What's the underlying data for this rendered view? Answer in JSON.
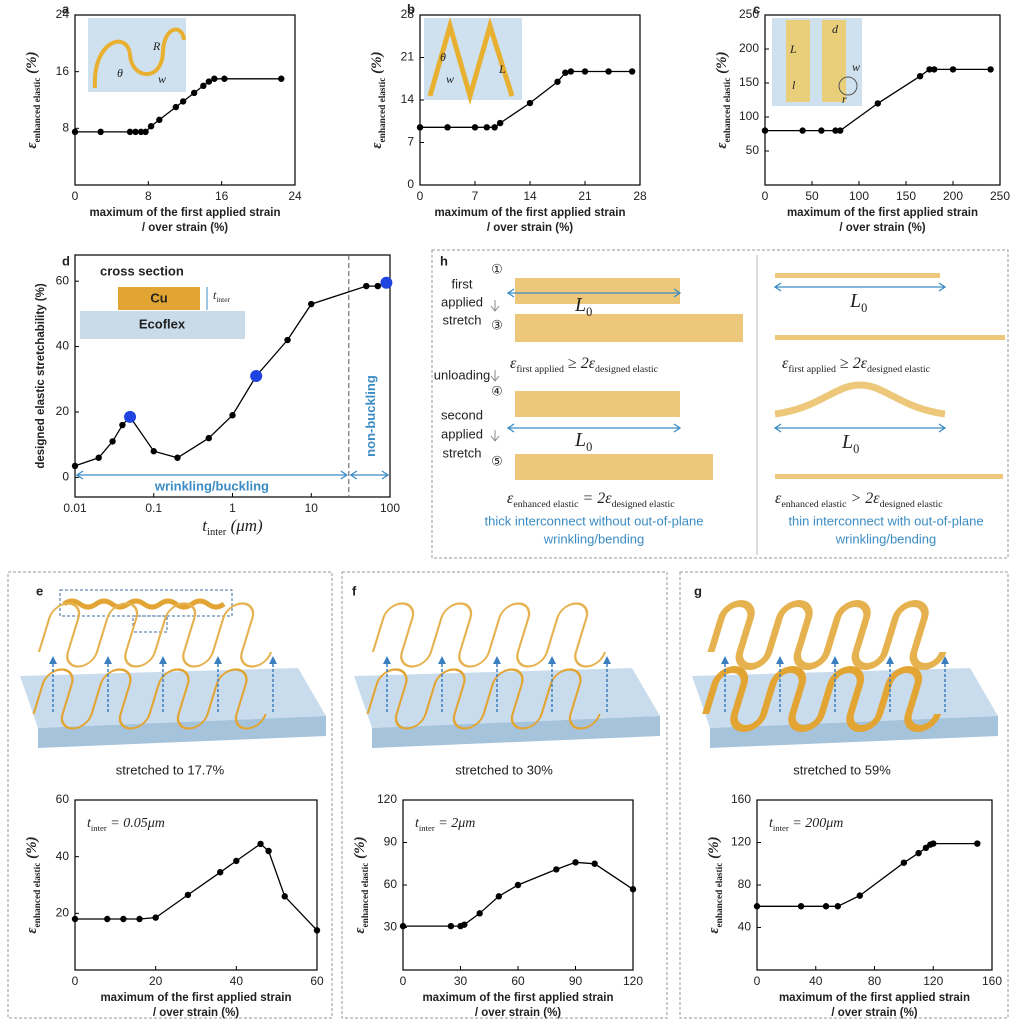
{
  "chart_data": [
    {
      "type": "line",
      "panel": "a",
      "x": [
        0,
        2.8,
        6,
        6.6,
        7.2,
        7.7,
        8.3,
        9.2,
        11,
        11.8,
        13,
        14,
        14.6,
        15.2,
        16.3,
        22.5
      ],
      "values": [
        7.5,
        7.5,
        7.5,
        7.5,
        7.5,
        7.5,
        8.3,
        9.2,
        11,
        11.8,
        13,
        14,
        14.6,
        15,
        15,
        15
      ],
      "color": "#000000",
      "xlim": [
        0,
        24
      ],
      "xticks": [
        0,
        8,
        16,
        24
      ],
      "ylim": [
        0,
        24
      ],
      "yticks": [
        8,
        16,
        24
      ],
      "xlabel": [
        "maximum of the first applied strain",
        "/ over strain (%)"
      ],
      "ylabel": [
        {
          "text": "ε"
        },
        {
          "sub": "enhanced elastic"
        },
        {
          "text": " (%)"
        }
      ],
      "inset_labels": [
        "R",
        "θ",
        "w"
      ]
    },
    {
      "type": "line",
      "panel": "b",
      "x": [
        0,
        3.5,
        7,
        8.5,
        9.5,
        10.2,
        14,
        17.5,
        18.5,
        19.2,
        21,
        24,
        27
      ],
      "values": [
        9.5,
        9.5,
        9.5,
        9.5,
        9.5,
        10.2,
        13.5,
        17,
        18.5,
        18.7,
        18.7,
        18.7,
        18.7
      ],
      "color": "#000000",
      "xlim": [
        0,
        28
      ],
      "xticks": [
        0,
        7,
        14,
        21,
        28
      ],
      "ylim": [
        0,
        28
      ],
      "yticks": [
        0,
        7,
        14,
        21,
        28
      ],
      "xlabel": [
        "maximum of the first applied strain",
        "/ over strain (%)"
      ],
      "ylabel": [
        {
          "text": "ε"
        },
        {
          "sub": "enhanced elastic"
        },
        {
          "text": " (%)"
        }
      ],
      "inset_labels": [
        "θ",
        "w",
        "L"
      ]
    },
    {
      "type": "line",
      "panel": "c",
      "x": [
        0,
        40,
        60,
        75,
        80,
        120,
        165,
        175,
        180,
        200,
        240
      ],
      "values": [
        80,
        80,
        80,
        80,
        80,
        120,
        160,
        170,
        170,
        170,
        170
      ],
      "color": "#000000",
      "xlim": [
        0,
        250
      ],
      "xticks": [
        0,
        50,
        100,
        150,
        200,
        250
      ],
      "ylim": [
        0,
        250
      ],
      "yticks": [
        50,
        100,
        150,
        200,
        250
      ],
      "xlabel": [
        "maximum of the first applied strain",
        "/ over strain (%)"
      ],
      "ylabel": [
        {
          "text": "ε"
        },
        {
          "sub": "enhanced elastic"
        },
        {
          "text": " (%)"
        }
      ],
      "inset_labels": [
        "L",
        "d",
        "l",
        "w",
        "r"
      ]
    },
    {
      "type": "line",
      "panel": "d",
      "xscale": "log",
      "x": [
        0.01,
        0.02,
        0.03,
        0.04,
        0.05,
        0.1,
        0.2,
        0.5,
        1,
        2,
        5,
        10,
        50,
        70,
        90
      ],
      "values": [
        3.5,
        6,
        11,
        16,
        18.5,
        8,
        6,
        12,
        19,
        31,
        42,
        53,
        58.5,
        58.5,
        59.5
      ],
      "color": "#000000",
      "marker_colors": [
        "#000000",
        "#000000",
        "#000000",
        "#000000",
        "#1f44e0",
        "#000000",
        "#000000",
        "#000000",
        "#000000",
        "#1f44e0",
        "#000000",
        "#000000",
        "#000000",
        "#000000",
        "#1f44e0"
      ],
      "xlim": [
        0.01,
        100
      ],
      "xticks": [
        0.01,
        0.1,
        1,
        10,
        100
      ],
      "ylim": [
        -6,
        68
      ],
      "yticks": [
        0,
        20,
        40,
        60
      ],
      "xlabel": [
        {
          "text": "t"
        },
        {
          "sub": "inter"
        },
        {
          "text": " (μm)"
        }
      ],
      "ylabel": "designed elastic stretchability (%)",
      "boundary_x": 30,
      "region_labels": [
        "wrinkling/buckling",
        "non-buckling"
      ],
      "inset": {
        "title": "cross section",
        "layers": [
          "Cu",
          "Ecoflex"
        ],
        "thickness_label": [
          {
            "text": "t"
          },
          {
            "sub": "inter"
          }
        ]
      }
    },
    {
      "type": "line",
      "panel": "e",
      "caption": "stretched to 17.7%",
      "x": [
        0,
        8,
        12,
        16,
        20,
        28,
        36,
        40,
        46,
        48,
        52,
        60
      ],
      "values": [
        18,
        18,
        18,
        18,
        18.5,
        26.5,
        34.5,
        38.5,
        44.5,
        42,
        26,
        14
      ],
      "color": "#000000",
      "xlim": [
        0,
        60
      ],
      "xticks": [
        0,
        20,
        40,
        60
      ],
      "ylim": [
        0,
        60
      ],
      "yticks": [
        20,
        40,
        60
      ],
      "xlabel": [
        "maximum of the first applied strain",
        "/ over strain (%)"
      ],
      "ylabel": [
        {
          "text": "ε"
        },
        {
          "sub": "enhanced elastic"
        },
        {
          "text": " (%)"
        }
      ],
      "annotation": [
        {
          "text": "t"
        },
        {
          "sub": "inter"
        },
        {
          "text": " = 0.05μm"
        }
      ]
    },
    {
      "type": "line",
      "panel": "f",
      "caption": "stretched to 30%",
      "x": [
        0,
        25,
        30,
        32,
        40,
        50,
        60,
        80,
        90,
        100,
        120
      ],
      "values": [
        31,
        31,
        31,
        32,
        40,
        52,
        60,
        71,
        76,
        75,
        57
      ],
      "color": "#000000",
      "xlim": [
        0,
        120
      ],
      "xticks": [
        0,
        30,
        60,
        90,
        120
      ],
      "ylim": [
        0,
        120
      ],
      "yticks": [
        30,
        60,
        90,
        120
      ],
      "xlabel": [
        "maximum of the first applied strain",
        "/ over strain (%)"
      ],
      "ylabel": [
        {
          "text": "ε"
        },
        {
          "sub": "enhanced elastic"
        },
        {
          "text": " (%)"
        }
      ],
      "annotation": [
        {
          "text": "t"
        },
        {
          "sub": "inter"
        },
        {
          "text": " = 2μm"
        }
      ]
    },
    {
      "type": "line",
      "panel": "g",
      "caption": "stretched to 59%",
      "x": [
        0,
        30,
        47,
        55,
        70,
        100,
        110,
        115,
        118,
        120,
        150
      ],
      "values": [
        60,
        60,
        60,
        60,
        70,
        101,
        110,
        115,
        118,
        119,
        119
      ],
      "color": "#000000",
      "xlim": [
        0,
        160
      ],
      "xticks": [
        0,
        40,
        80,
        120,
        160
      ],
      "ylim": [
        0,
        160
      ],
      "yticks": [
        40,
        80,
        120,
        160
      ],
      "xlabel": [
        "maximum of the first applied strain",
        "/ over strain (%)"
      ],
      "ylabel": [
        {
          "text": "ε"
        },
        {
          "sub": "enhanced elastic"
        },
        {
          "text": " (%)"
        }
      ],
      "annotation": [
        {
          "text": "t"
        },
        {
          "sub": "inter"
        },
        {
          "text": " = 200μm"
        }
      ]
    }
  ],
  "diagram": {
    "panel": "h",
    "step_numbers": [
      "①",
      "③",
      "④",
      "⑤"
    ],
    "stage_labels": [
      [
        "first",
        "applied",
        "stretch"
      ],
      [
        "unloading"
      ],
      [
        "second",
        "applied",
        "stretch"
      ]
    ],
    "length_label": [
      {
        "text": "L"
      },
      {
        "sub": "0"
      }
    ],
    "condition": [
      {
        "text": "ε"
      },
      {
        "sub": "first applied"
      },
      {
        "text": " ≥ 2ε"
      },
      {
        "sub": "designed elastic"
      }
    ],
    "left_result": [
      {
        "text": "ε"
      },
      {
        "sub": "enhanced elastic"
      },
      {
        "text": " = 2ε"
      },
      {
        "sub": "designed elastic"
      }
    ],
    "right_result": [
      {
        "text": "ε"
      },
      {
        "sub": "enhanced elastic"
      },
      {
        "text": " > 2ε"
      },
      {
        "sub": "designed elastic"
      }
    ],
    "left_caption": [
      "thick interconnect without out-of-plane",
      "wrinkling/bending"
    ],
    "right_caption": [
      "thin interconnect with out-of-plane",
      "wrinkling/bending"
    ]
  }
}
